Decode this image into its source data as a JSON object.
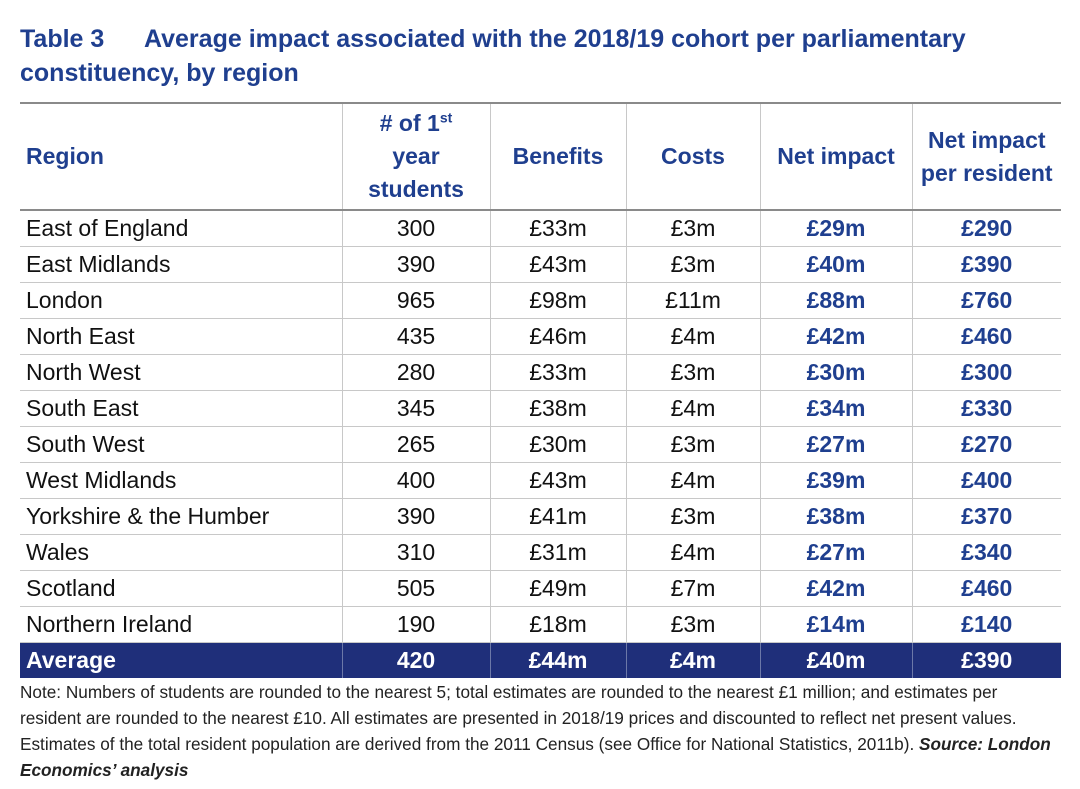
{
  "caption": {
    "label": "Table 3",
    "title": "Average impact associated with the 2018/19 cohort per parliamentary constituency, by region"
  },
  "table": {
    "headers": {
      "region": "Region",
      "students_pre": "# of 1",
      "students_sup": "st",
      "students_line2": "year",
      "students_line3": "students",
      "benefits": "Benefits",
      "costs": "Costs",
      "net_impact": "Net impact",
      "net_per_resident_line1": "Net impact",
      "net_per_resident_line2": "per resident"
    },
    "rows": [
      {
        "region": "East of England",
        "students": "300",
        "benefits": "£33m",
        "costs": "£3m",
        "net": "£29m",
        "per_resident": "£290"
      },
      {
        "region": "East Midlands",
        "students": "390",
        "benefits": "£43m",
        "costs": "£3m",
        "net": "£40m",
        "per_resident": "£390"
      },
      {
        "region": "London",
        "students": "965",
        "benefits": "£98m",
        "costs": "£11m",
        "net": "£88m",
        "per_resident": "£760"
      },
      {
        "region": "North East",
        "students": "435",
        "benefits": "£46m",
        "costs": "£4m",
        "net": "£42m",
        "per_resident": "£460"
      },
      {
        "region": "North West",
        "students": "280",
        "benefits": "£33m",
        "costs": "£3m",
        "net": "£30m",
        "per_resident": "£300"
      },
      {
        "region": "South East",
        "students": "345",
        "benefits": "£38m",
        "costs": "£4m",
        "net": "£34m",
        "per_resident": "£330"
      },
      {
        "region": "South West",
        "students": "265",
        "benefits": "£30m",
        "costs": "£3m",
        "net": "£27m",
        "per_resident": "£270"
      },
      {
        "region": "West Midlands",
        "students": "400",
        "benefits": "£43m",
        "costs": "£4m",
        "net": "£39m",
        "per_resident": "£400"
      },
      {
        "region": "Yorkshire & the Humber",
        "students": "390",
        "benefits": "£41m",
        "costs": "£3m",
        "net": "£38m",
        "per_resident": "£370"
      },
      {
        "region": "Wales",
        "students": "310",
        "benefits": "£31m",
        "costs": "£4m",
        "net": "£27m",
        "per_resident": "£340"
      },
      {
        "region": "Scotland",
        "students": "505",
        "benefits": "£49m",
        "costs": "£7m",
        "net": "£42m",
        "per_resident": "£460"
      },
      {
        "region": "Northern Ireland",
        "students": "190",
        "benefits": "£18m",
        "costs": "£3m",
        "net": "£14m",
        "per_resident": "£140"
      }
    ],
    "average": {
      "region": "Average",
      "students": "420",
      "benefits": "£44m",
      "costs": "£4m",
      "net": "£40m",
      "per_resident": "£390"
    }
  },
  "note": {
    "text": "Note: Numbers of students are rounded to the nearest 5; total estimates are rounded to the nearest £1 million; and estimates per resident are rounded to the nearest £10. All estimates are presented in 2018/19 prices and discounted to reflect net present values. Estimates of the total resident population are derived from the 2011 Census (see Office for National Statistics, 2011b). ",
    "source": "Source: London Economics’ analysis"
  },
  "colors": {
    "heading_blue": "#1f3f8f",
    "average_row_bg": "#1f2f7a"
  }
}
